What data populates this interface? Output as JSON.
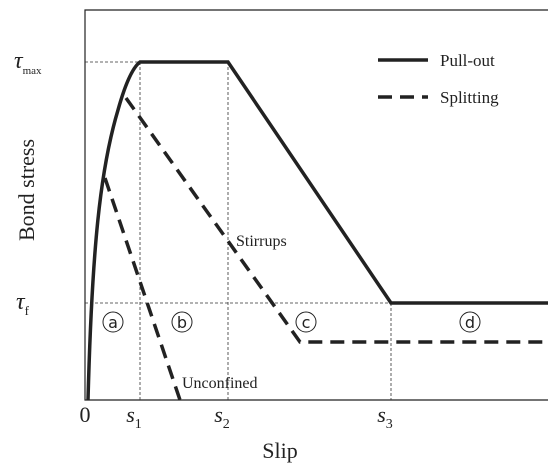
{
  "axes": {
    "y_title": "Bond stress",
    "x_title": "Slip"
  },
  "y_labels": [
    {
      "symbol": "τ",
      "sub": "max"
    },
    {
      "symbol": "τ",
      "sub": "f"
    }
  ],
  "x_labels": [
    {
      "symbol": "0"
    },
    {
      "symbol": "s",
      "sub": "1"
    },
    {
      "symbol": "s",
      "sub": "2"
    },
    {
      "symbol": "s",
      "sub": "3"
    }
  ],
  "legend": [
    "Pull-out",
    "Splitting"
  ],
  "annotations": [
    "Stirrups",
    "Unconfined"
  ],
  "stages": [
    "a",
    "b",
    "c",
    "d"
  ]
}
